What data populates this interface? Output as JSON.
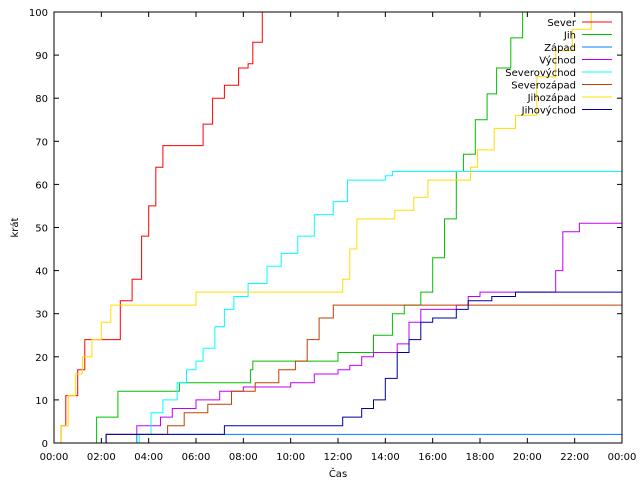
{
  "chart_data": {
    "type": "line",
    "xlabel": "Čas",
    "ylabel": "krát",
    "xlim": [
      0,
      24
    ],
    "ylim": [
      0,
      100
    ],
    "x_ticks": [
      "00:00",
      "02:00",
      "04:00",
      "06:00",
      "08:00",
      "10:00",
      "12:00",
      "14:00",
      "16:00",
      "18:00",
      "20:00",
      "22:00",
      "00:00"
    ],
    "y_ticks": [
      0,
      10,
      20,
      30,
      40,
      50,
      60,
      70,
      80,
      90,
      100
    ],
    "grid": false,
    "legend_position": "top-right",
    "series": [
      {
        "name": "Sever",
        "color": "#ff0000",
        "points": [
          [
            0.1,
            0
          ],
          [
            0.3,
            4
          ],
          [
            0.5,
            11
          ],
          [
            0.8,
            11
          ],
          [
            1.0,
            17
          ],
          [
            1.3,
            24
          ],
          [
            2.5,
            24
          ],
          [
            2.8,
            33
          ],
          [
            3.3,
            38
          ],
          [
            3.7,
            48
          ],
          [
            4.0,
            55
          ],
          [
            4.3,
            64
          ],
          [
            4.6,
            69
          ],
          [
            5.2,
            69
          ],
          [
            6.0,
            69
          ],
          [
            6.3,
            74
          ],
          [
            6.7,
            80
          ],
          [
            7.2,
            83
          ],
          [
            7.8,
            87
          ],
          [
            8.2,
            88
          ],
          [
            8.4,
            93
          ],
          [
            8.8,
            100
          ]
        ]
      },
      {
        "name": "Jih",
        "color": "#00c000",
        "points": [
          [
            1.6,
            0
          ],
          [
            1.8,
            6
          ],
          [
            2.4,
            6
          ],
          [
            2.7,
            12
          ],
          [
            4.1,
            12
          ],
          [
            5.3,
            14
          ],
          [
            8.0,
            14
          ],
          [
            8.3,
            17
          ],
          [
            8.4,
            19
          ],
          [
            10.0,
            19
          ],
          [
            12.0,
            21
          ],
          [
            13.5,
            25
          ],
          [
            14.3,
            30
          ],
          [
            14.8,
            32
          ],
          [
            15.2,
            32
          ],
          [
            15.5,
            35
          ],
          [
            16.0,
            43
          ],
          [
            16.5,
            52
          ],
          [
            17.0,
            63
          ],
          [
            17.3,
            67
          ],
          [
            17.8,
            75
          ],
          [
            18.3,
            81
          ],
          [
            18.7,
            87
          ],
          [
            19.3,
            94
          ],
          [
            19.8,
            100
          ]
        ]
      },
      {
        "name": "Západ",
        "color": "#0080ff",
        "points": [
          [
            3.4,
            0
          ],
          [
            3.5,
            2
          ],
          [
            24.0,
            2
          ]
        ]
      },
      {
        "name": "Východ",
        "color": "#c000ff",
        "points": [
          [
            2.1,
            0
          ],
          [
            2.2,
            2
          ],
          [
            3.2,
            2
          ],
          [
            3.5,
            4
          ],
          [
            4.5,
            6
          ],
          [
            5.0,
            8
          ],
          [
            6.0,
            10
          ],
          [
            7.0,
            12
          ],
          [
            8.0,
            13
          ],
          [
            10.0,
            14
          ],
          [
            11.0,
            16
          ],
          [
            12.0,
            17
          ],
          [
            12.5,
            18
          ],
          [
            13.0,
            20
          ],
          [
            13.5,
            21
          ],
          [
            14.5,
            23
          ],
          [
            15.0,
            28
          ],
          [
            15.5,
            31
          ],
          [
            17.0,
            32
          ],
          [
            17.5,
            34
          ],
          [
            18.0,
            35
          ],
          [
            21.0,
            35
          ],
          [
            21.2,
            40
          ],
          [
            21.5,
            49
          ],
          [
            22.2,
            51
          ],
          [
            24.0,
            51
          ]
        ]
      },
      {
        "name": "Severovýchod",
        "color": "#00ffff",
        "points": [
          [
            3.4,
            0
          ],
          [
            3.6,
            2
          ],
          [
            4.1,
            7
          ],
          [
            4.6,
            10
          ],
          [
            5.2,
            14
          ],
          [
            5.6,
            17
          ],
          [
            6.0,
            19
          ],
          [
            6.3,
            22
          ],
          [
            6.8,
            27
          ],
          [
            7.2,
            31
          ],
          [
            7.6,
            34
          ],
          [
            8.2,
            37
          ],
          [
            9.0,
            41
          ],
          [
            9.6,
            44
          ],
          [
            10.3,
            48
          ],
          [
            11.0,
            53
          ],
          [
            11.8,
            56
          ],
          [
            12.4,
            61
          ],
          [
            14.0,
            62
          ],
          [
            14.3,
            63
          ],
          [
            24.0,
            63
          ]
        ]
      },
      {
        "name": "Severozápad",
        "color": "#c04000",
        "points": [
          [
            2.0,
            0
          ],
          [
            2.2,
            2
          ],
          [
            4.0,
            2
          ],
          [
            4.8,
            4
          ],
          [
            5.5,
            7
          ],
          [
            6.5,
            9
          ],
          [
            7.5,
            12
          ],
          [
            8.0,
            12
          ],
          [
            8.5,
            14
          ],
          [
            9.5,
            17
          ],
          [
            10.2,
            19
          ],
          [
            10.7,
            24
          ],
          [
            11.2,
            29
          ],
          [
            11.8,
            32
          ],
          [
            24.0,
            32
          ]
        ]
      },
      {
        "name": "Jihozápad",
        "color": "#ffdd00",
        "points": [
          [
            0.1,
            0
          ],
          [
            0.3,
            4
          ],
          [
            0.6,
            11
          ],
          [
            0.9,
            16
          ],
          [
            1.2,
            20
          ],
          [
            1.6,
            24
          ],
          [
            2.0,
            28
          ],
          [
            2.4,
            32
          ],
          [
            5.8,
            32
          ],
          [
            6.0,
            35
          ],
          [
            12.0,
            35
          ],
          [
            12.2,
            38
          ],
          [
            12.5,
            45
          ],
          [
            12.8,
            52
          ],
          [
            14.0,
            52
          ],
          [
            14.4,
            54
          ],
          [
            15.2,
            57
          ],
          [
            15.8,
            61
          ],
          [
            16.2,
            61
          ],
          [
            17.3,
            61
          ],
          [
            17.6,
            64
          ],
          [
            17.9,
            68
          ],
          [
            18.6,
            73
          ],
          [
            19.5,
            76
          ],
          [
            20.4,
            85
          ],
          [
            21.2,
            91
          ],
          [
            21.9,
            96
          ],
          [
            22.7,
            100
          ]
        ]
      },
      {
        "name": "Jihovýchod",
        "color": "#0000a0",
        "points": [
          [
            2.1,
            0
          ],
          [
            2.2,
            2
          ],
          [
            7.0,
            2
          ],
          [
            7.2,
            4
          ],
          [
            11.0,
            4
          ],
          [
            12.2,
            6
          ],
          [
            13.0,
            8
          ],
          [
            13.5,
            10
          ],
          [
            14.0,
            15
          ],
          [
            14.5,
            21
          ],
          [
            15.0,
            24
          ],
          [
            15.5,
            28
          ],
          [
            16.0,
            29
          ],
          [
            17.0,
            31
          ],
          [
            17.5,
            33
          ],
          [
            18.5,
            34
          ],
          [
            19.5,
            35
          ],
          [
            24.0,
            35
          ]
        ]
      }
    ]
  }
}
